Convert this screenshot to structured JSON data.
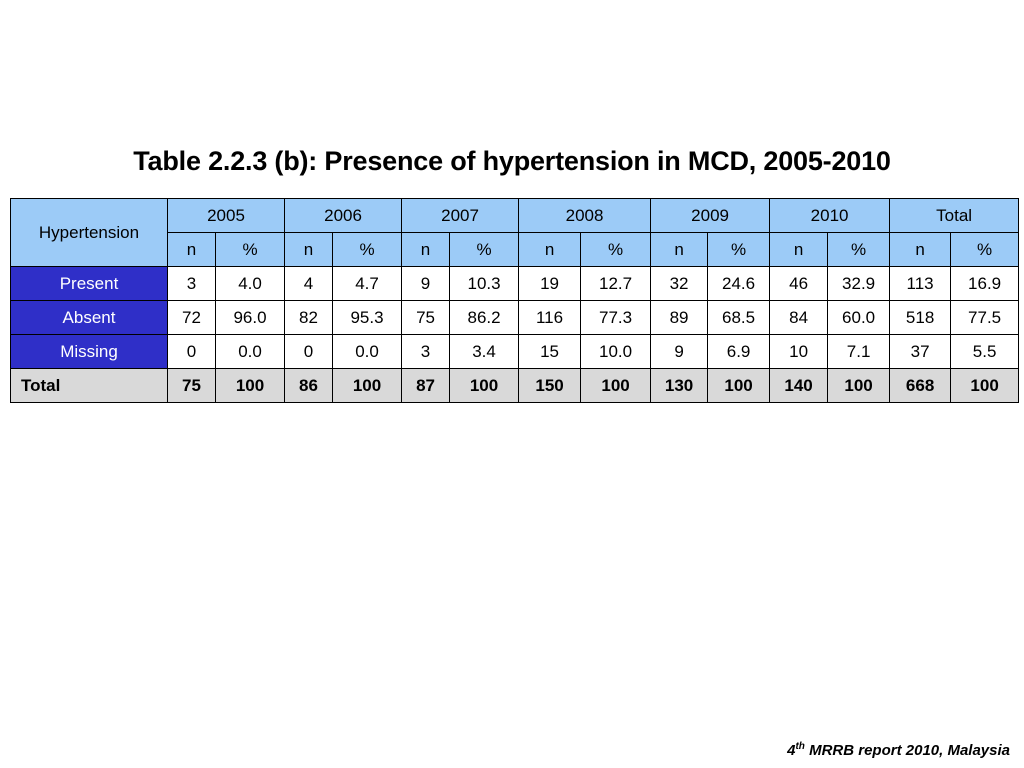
{
  "title": "Table 2.2.3 (b): Presence of hypertension in MCD, 2005-2010",
  "table": {
    "corner": "Hypertension",
    "groups": [
      "2005",
      "2006",
      "2007",
      "2008",
      "2009",
      "2010",
      "Total"
    ],
    "sub": [
      "n",
      "%"
    ],
    "rows": [
      {
        "label": "Present",
        "cells": [
          "3",
          "4.0",
          "4",
          "4.7",
          "9",
          "10.3",
          "19",
          "12.7",
          "32",
          "24.6",
          "46",
          "32.9",
          "113",
          "16.9"
        ]
      },
      {
        "label": "Absent",
        "cells": [
          "72",
          "96.0",
          "82",
          "95.3",
          "75",
          "86.2",
          "116",
          "77.3",
          "89",
          "68.5",
          "84",
          "60.0",
          "518",
          "77.5"
        ]
      },
      {
        "label": "Missing",
        "cells": [
          "0",
          "0.0",
          "0",
          "0.0",
          "3",
          "3.4",
          "15",
          "10.0",
          "9",
          "6.9",
          "10",
          "7.1",
          "37",
          "5.5"
        ]
      }
    ],
    "total": {
      "label": "Total",
      "cells": [
        "75",
        "100",
        "86",
        "100",
        "87",
        "100",
        "150",
        "100",
        "130",
        "100",
        "140",
        "100",
        "668",
        "100"
      ]
    }
  },
  "footer": {
    "number": "4",
    "sup": "th",
    "text": " MRRB report 2010, Malaysia"
  },
  "colors": {
    "header_bg": "#9ccbf7",
    "row_label_bg": "#2f2fc8",
    "total_bg": "#d9d9d9"
  }
}
